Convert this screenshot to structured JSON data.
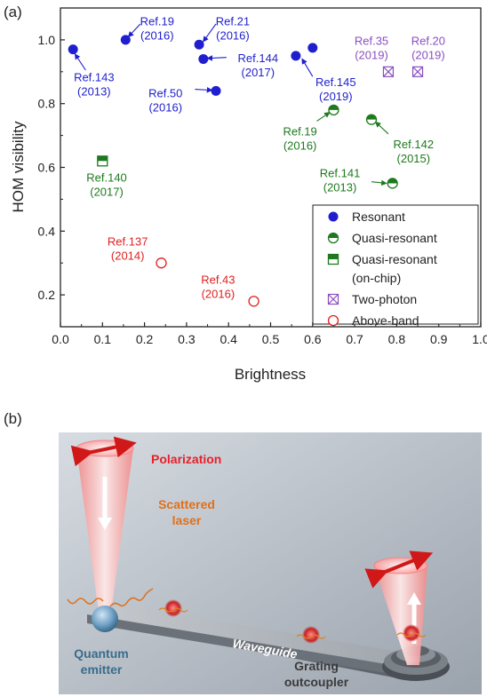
{
  "figure": {
    "panel_a_label": "(a)",
    "panel_b_label": "(b)"
  },
  "chart_data": {
    "type": "scatter",
    "xlabel": "Brightness",
    "ylabel": "HOM visibility",
    "xlim": [
      0.0,
      1.0
    ],
    "ylim": [
      0.1,
      1.1
    ],
    "xticks": [
      "0.0",
      "0.1",
      "0.2",
      "0.3",
      "0.4",
      "0.5",
      "0.6",
      "0.7",
      "0.8",
      "0.9",
      "1.0"
    ],
    "yticks": [
      "0.2",
      "0.4",
      "0.6",
      "0.8",
      "1.0"
    ],
    "ytick_values": [
      0.2,
      0.4,
      0.6,
      0.8,
      1.0
    ],
    "grid": false,
    "legend_position": "bottom-right",
    "colors": {
      "resonant": "#1f1fcf",
      "quasi": "#1e7a1e",
      "two_photon": "#8a4fc0",
      "above_band": "#e02020"
    },
    "series": [
      {
        "name": "Resonant",
        "marker": "filled-circle",
        "color_key": "resonant",
        "points": [
          {
            "x": 0.03,
            "y": 0.97
          },
          {
            "x": 0.155,
            "y": 1.0
          },
          {
            "x": 0.33,
            "y": 0.985
          },
          {
            "x": 0.34,
            "y": 0.94
          },
          {
            "x": 0.37,
            "y": 0.84
          },
          {
            "x": 0.56,
            "y": 0.95
          },
          {
            "x": 0.6,
            "y": 0.975
          }
        ]
      },
      {
        "name": "Quasi-resonant",
        "marker": "half-circle",
        "color_key": "quasi",
        "points": [
          {
            "x": 0.65,
            "y": 0.78
          },
          {
            "x": 0.74,
            "y": 0.75
          },
          {
            "x": 0.79,
            "y": 0.55
          }
        ]
      },
      {
        "name": "Quasi-resonant (on-chip)",
        "marker": "half-square",
        "color_key": "quasi",
        "points": [
          {
            "x": 0.1,
            "y": 0.62
          }
        ]
      },
      {
        "name": "Two-photon",
        "marker": "crossed-square",
        "color_key": "two_photon",
        "points": [
          {
            "x": 0.78,
            "y": 0.9
          },
          {
            "x": 0.85,
            "y": 0.9
          }
        ]
      },
      {
        "name": "Above-band",
        "marker": "open-circle",
        "color_key": "above_band",
        "points": [
          {
            "x": 0.24,
            "y": 0.3
          },
          {
            "x": 0.46,
            "y": 0.18
          }
        ]
      }
    ],
    "legend": [
      {
        "marker": "filled-circle",
        "color_key": "resonant",
        "label": "Resonant"
      },
      {
        "marker": "half-circle",
        "color_key": "quasi",
        "label": "Quasi-resonant"
      },
      {
        "marker": "half-square",
        "color_key": "quasi",
        "label": "Quasi-resonant",
        "label2": "(on-chip)"
      },
      {
        "marker": "crossed-square",
        "color_key": "two_photon",
        "label": "Two-photon"
      },
      {
        "marker": "open-circle",
        "color_key": "above_band",
        "label": "Above-band"
      }
    ],
    "annotations": [
      {
        "ref": "Ref.143",
        "year": "(2013)",
        "color_key": "resonant",
        "tx": 0.08,
        "ty": 0.87,
        "arrow_from": [
          0.06,
          0.905
        ],
        "arrow_to": [
          0.035,
          0.955
        ]
      },
      {
        "ref": "Ref.19",
        "year": "(2016)",
        "color_key": "resonant",
        "tx": 0.23,
        "ty": 1.045,
        "arrow_from": [
          0.19,
          1.05
        ],
        "arrow_to": [
          0.162,
          1.01
        ]
      },
      {
        "ref": "Ref.21",
        "year": "(2016)",
        "color_key": "resonant",
        "tx": 0.41,
        "ty": 1.045,
        "arrow_from": [
          0.37,
          1.05
        ],
        "arrow_to": [
          0.34,
          0.995
        ]
      },
      {
        "ref": "Ref.144",
        "year": "(2017)",
        "color_key": "resonant",
        "tx": 0.47,
        "ty": 0.93,
        "arrow_from": [
          0.395,
          0.945
        ],
        "arrow_to": [
          0.35,
          0.942
        ]
      },
      {
        "ref": "Ref.50",
        "year": "(2016)",
        "color_key": "resonant",
        "tx": 0.25,
        "ty": 0.82,
        "arrow_from": [
          0.32,
          0.845
        ],
        "arrow_to": [
          0.36,
          0.842
        ]
      },
      {
        "ref": "Ref.145",
        "year": "(2019)",
        "color_key": "resonant",
        "tx": 0.655,
        "ty": 0.855,
        "arrow_from": [
          0.6,
          0.885
        ],
        "arrow_to": [
          0.575,
          0.94
        ]
      },
      {
        "ref": "Ref.19",
        "year": "(2016)",
        "color_key": "quasi",
        "tx": 0.57,
        "ty": 0.7,
        "arrow_from": [
          0.61,
          0.745
        ],
        "arrow_to": [
          0.64,
          0.772
        ]
      },
      {
        "ref": "Ref.142",
        "year": "(2015)",
        "color_key": "quasi",
        "tx": 0.84,
        "ty": 0.66,
        "arrow_from": [
          0.78,
          0.705
        ],
        "arrow_to": [
          0.75,
          0.742
        ]
      },
      {
        "ref": "Ref.141",
        "year": "(2013)",
        "color_key": "quasi",
        "tx": 0.665,
        "ty": 0.57,
        "arrow_from": [
          0.74,
          0.555
        ],
        "arrow_to": [
          0.775,
          0.55
        ]
      },
      {
        "ref": "Ref.35",
        "year": "(2019)",
        "color_key": "two_photon",
        "tx": 0.74,
        "ty": 0.985,
        "arrow_from": null,
        "arrow_to": null
      },
      {
        "ref": "Ref.20",
        "year": "(2019)",
        "color_key": "two_photon",
        "tx": 0.875,
        "ty": 0.985,
        "arrow_from": null,
        "arrow_to": null
      },
      {
        "ref": "Ref.140",
        "year": "(2017)",
        "color_key": "quasi",
        "tx": 0.11,
        "ty": 0.555,
        "arrow_from": null,
        "arrow_to": null
      },
      {
        "ref": "Ref.137",
        "year": "(2014)",
        "color_key": "above_band",
        "tx": 0.16,
        "ty": 0.355,
        "arrow_from": null,
        "arrow_to": null
      },
      {
        "ref": "Ref.43",
        "year": "(2016)",
        "color_key": "above_band",
        "tx": 0.375,
        "ty": 0.235,
        "arrow_from": null,
        "arrow_to": null
      }
    ]
  },
  "illustration": {
    "labels": {
      "polarization": "Polarization",
      "scattered_laser_1": "Scattered",
      "scattered_laser_2": "laser",
      "quantum_emitter_1": "Quantum",
      "quantum_emitter_2": "emitter",
      "waveguide": "Waveguide",
      "grating_1": "Grating",
      "grating_2": "outcoupler"
    },
    "colors": {
      "polarization": "#e8202a",
      "scattered": "#e0701a",
      "emitter": "#3a6c8c",
      "waveguide_text": "#ffffff",
      "grating": "#3b3b3b",
      "background": "#b8bec6"
    }
  }
}
